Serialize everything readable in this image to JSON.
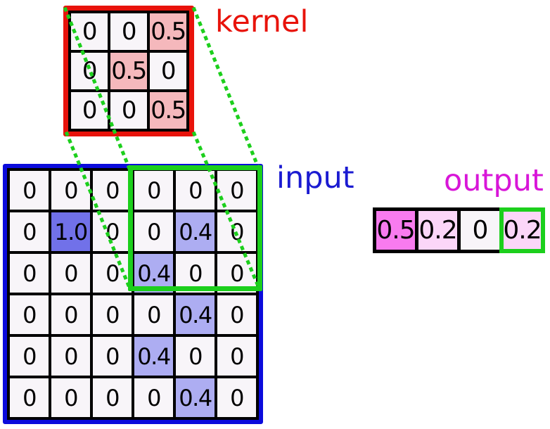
{
  "labels": {
    "kernel": "kernel",
    "input": "input",
    "output": "output"
  },
  "colors": {
    "red": "#e8130b",
    "blue": "#0b0bdc",
    "blue_label": "#1b1bd1",
    "magenta": "#d816d8",
    "green": "#1ccf1c",
    "black": "#000000",
    "cell_bg": "#f8f5f9",
    "kernel_highlight": "#f5b8bc",
    "input_highlight_strong": "#7171e9",
    "input_highlight_light": "#adadf2",
    "output_highlight_strong": "#f87bef",
    "output_highlight_light": "#fbd6f8"
  },
  "kernel": {
    "values": [
      [
        "0",
        "0",
        "0.5"
      ],
      [
        "0",
        "0.5",
        "0"
      ],
      [
        "0",
        "0",
        "0.5"
      ]
    ],
    "highlights": [
      [
        0,
        0,
        1
      ],
      [
        0,
        1,
        0
      ],
      [
        0,
        0,
        1
      ]
    ]
  },
  "input": {
    "values": [
      [
        "0",
        "0",
        "0",
        "0",
        "0",
        "0"
      ],
      [
        "0",
        "1.0",
        "0",
        "0",
        "0.4",
        "0"
      ],
      [
        "0",
        "0",
        "0",
        "0.4",
        "0",
        "0"
      ],
      [
        "0",
        "0",
        "0",
        "0",
        "0.4",
        "0"
      ],
      [
        "0",
        "0",
        "0",
        "0.4",
        "0",
        "0"
      ],
      [
        "0",
        "0",
        "0",
        "0",
        "0.4",
        "0"
      ]
    ],
    "highlights": [
      [
        0,
        0,
        0,
        0,
        0,
        0
      ],
      [
        0,
        2,
        0,
        0,
        1,
        0
      ],
      [
        0,
        0,
        0,
        1,
        0,
        0
      ],
      [
        0,
        0,
        0,
        0,
        1,
        0
      ],
      [
        0,
        0,
        0,
        1,
        0,
        0
      ],
      [
        0,
        0,
        0,
        0,
        1,
        0
      ]
    ]
  },
  "output": {
    "values": [
      "0.5",
      "0.2",
      "0",
      "0.2"
    ],
    "fills": [
      "strong",
      "light",
      "none",
      "light"
    ],
    "highlight_border_index": 3
  }
}
